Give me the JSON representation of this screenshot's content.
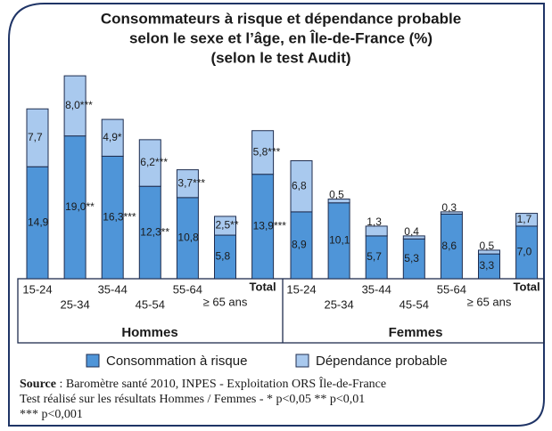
{
  "chart_data": {
    "type": "bar",
    "stacked": true,
    "title": [
      "Consommateurs à risque et dépendance probable",
      "selon le sexe et l’âge, en Île-de-France (%)",
      "(selon le test Audit)"
    ],
    "groups": [
      "Hommes",
      "Femmes"
    ],
    "categories": [
      "15-24",
      "25-34",
      "35-44",
      "45-54",
      "55-64",
      "≥ 65 ans",
      "Total",
      "15-24",
      "25-34",
      "35-44",
      "45-54",
      "55-64",
      "≥ 65 ans",
      "Total"
    ],
    "series": [
      {
        "name": "Consommation à risque",
        "color": "#4f95d8",
        "values": [
          14.9,
          19.0,
          16.3,
          12.3,
          10.8,
          5.8,
          13.9,
          8.9,
          10.1,
          5.7,
          5.3,
          8.6,
          3.3,
          7.0
        ],
        "value_labels": [
          "14,9",
          "19,0**",
          "16,3***",
          "12,3**",
          "10,8",
          "5,8",
          "13,9***",
          "8,9",
          "10,1",
          "5,7",
          "5,3",
          "8,6",
          "3,3",
          "7,0"
        ]
      },
      {
        "name": "Dépendance probable",
        "color": "#a9c9ee",
        "values": [
          7.7,
          8.0,
          4.9,
          6.2,
          3.7,
          2.5,
          5.8,
          6.8,
          0.5,
          1.3,
          0.4,
          0.3,
          0.5,
          1.7
        ],
        "value_labels": [
          "7,7",
          "8,0***",
          "4,9*",
          "6,2***",
          "3,7***",
          "2,5**",
          "5,8***",
          "6,8",
          "0,5",
          "1,3",
          "0,4",
          "0,3",
          "0,5",
          "1,7"
        ]
      }
    ],
    "ylim": [
      0,
      28
    ],
    "source_label": "Source",
    "notes": [
      " : Baromètre santé 2010, INPES - Exploitation ORS Île-de-France",
      "Test réalisé sur les résultats Hommes / Femmes - * p<0,05 ** p<0,01",
      "*** p<0,001"
    ]
  }
}
